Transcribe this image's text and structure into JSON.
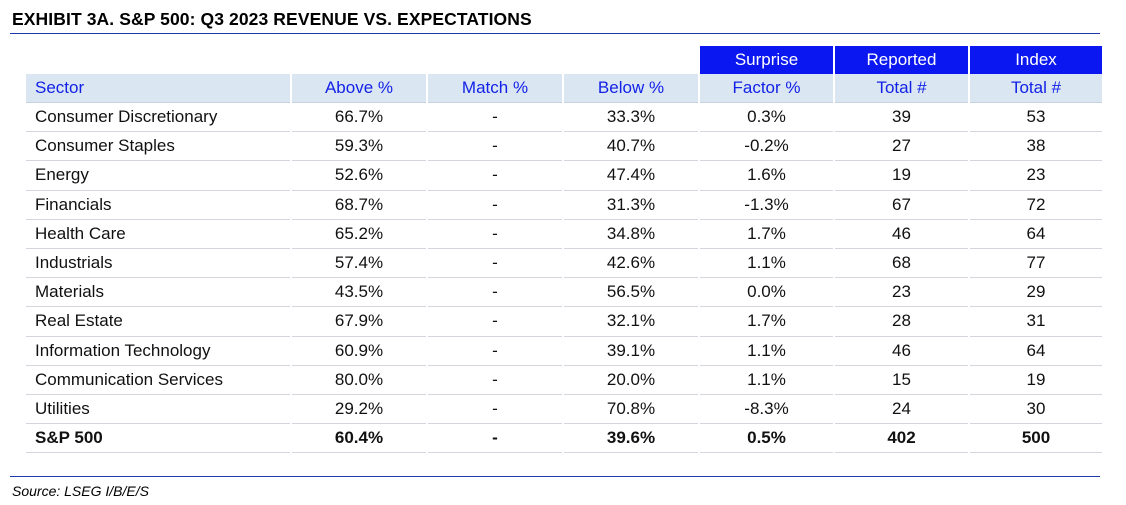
{
  "title": "EXHIBIT 3A.  S&P 500: Q3 2023 REVENUE VS. EXPECTATIONS",
  "table": {
    "group_headers": [
      "",
      "",
      "",
      "",
      "Surprise",
      "Reported",
      "Index"
    ],
    "columns": [
      "Sector",
      "Above %",
      "Match %",
      "Below %",
      "Factor %",
      "Total #",
      "Total #"
    ],
    "rows": [
      [
        "Consumer Discretionary",
        "66.7%",
        "-",
        "33.3%",
        "0.3%",
        "39",
        "53"
      ],
      [
        "Consumer Staples",
        "59.3%",
        "-",
        "40.7%",
        "-0.2%",
        "27",
        "38"
      ],
      [
        "Energy",
        "52.6%",
        "-",
        "47.4%",
        "1.6%",
        "19",
        "23"
      ],
      [
        "Financials",
        "68.7%",
        "-",
        "31.3%",
        "-1.3%",
        "67",
        "72"
      ],
      [
        "Health Care",
        "65.2%",
        "-",
        "34.8%",
        "1.7%",
        "46",
        "64"
      ],
      [
        "Industrials",
        "57.4%",
        "-",
        "42.6%",
        "1.1%",
        "68",
        "77"
      ],
      [
        "Materials",
        "43.5%",
        "-",
        "56.5%",
        "0.0%",
        "23",
        "29"
      ],
      [
        "Real Estate",
        "67.9%",
        "-",
        "32.1%",
        "1.7%",
        "28",
        "31"
      ],
      [
        "Information Technology",
        "60.9%",
        "-",
        "39.1%",
        "1.1%",
        "46",
        "64"
      ],
      [
        "Communication Services",
        "80.0%",
        "-",
        "20.0%",
        "1.1%",
        "15",
        "19"
      ],
      [
        "Utilities",
        "29.2%",
        "-",
        "70.8%",
        "-8.3%",
        "24",
        "30"
      ]
    ],
    "total_row": [
      "S&P 500",
      "60.4%",
      "-",
      "39.6%",
      "0.5%",
      "402",
      "500"
    ]
  },
  "source": "Source: LSEG I/B/E/S",
  "colors": {
    "header_blue": "#0a17f0",
    "header_text_blue": "#1222e6",
    "header_band": "#dbe6f3",
    "rule_blue": "#1e3aa8"
  }
}
